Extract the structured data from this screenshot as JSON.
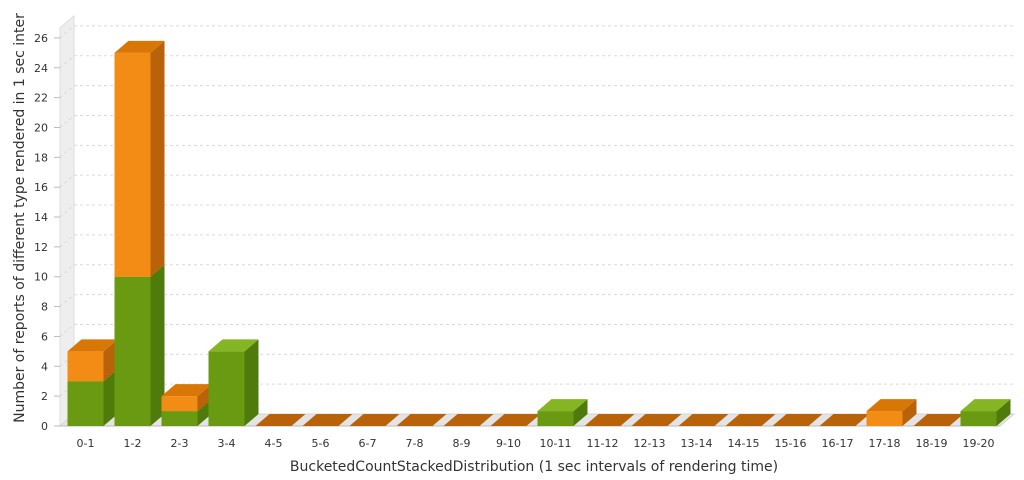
{
  "chart_data": {
    "type": "bar",
    "stacked": true,
    "three_d": true,
    "xlabel": "BucketedCountStackedDistribution (1 sec intervals of rendering time)",
    "ylabel": "Number of reports of different type rendered in 1 sec inter",
    "categories": [
      "0-1",
      "1-2",
      "2-3",
      "3-4",
      "4-5",
      "5-6",
      "6-7",
      "7-8",
      "8-9",
      "9-10",
      "10-11",
      "11-12",
      "12-13",
      "13-14",
      "14-15",
      "15-16",
      "16-17",
      "17-18",
      "18-19",
      "19-20"
    ],
    "y_ticks": [
      "0",
      "2",
      "4",
      "6",
      "8",
      "10",
      "12",
      "14",
      "16",
      "18",
      "20",
      "22",
      "24",
      "26"
    ],
    "ylim": [
      0,
      27
    ],
    "grid": true,
    "legend": "none",
    "series": [
      {
        "values": [
          3,
          10,
          1,
          5,
          0,
          0,
          0,
          0,
          0,
          0,
          1,
          0,
          0,
          0,
          0,
          0,
          0,
          0,
          0,
          1
        ],
        "color": "#6a9a12",
        "dark_color": "#4f7a0c",
        "light_color": "#86b524"
      },
      {
        "values": [
          2,
          15,
          1,
          0,
          0,
          0,
          0,
          0,
          0,
          0,
          0,
          0,
          0,
          0,
          0,
          0,
          0,
          1,
          0,
          0
        ],
        "color": "#f28c14",
        "dark_color": "#b8620a",
        "light_color": "#d97706"
      }
    ]
  }
}
